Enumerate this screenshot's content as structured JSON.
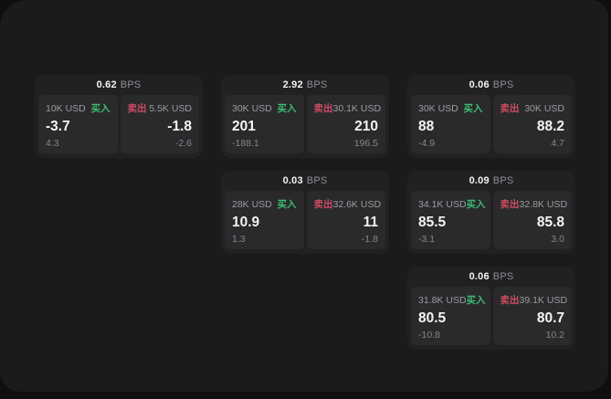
{
  "labels": {
    "bps_unit": "BPS",
    "buy": "买入",
    "sell": "卖出"
  },
  "colors": {
    "buy": "#3dbd71",
    "sell": "#cc4d64",
    "window_bg": "#1b1b1c",
    "card_bg": "#212123",
    "panel_bg": "#2a2a2c"
  },
  "cards": [
    {
      "row": 1,
      "col": 1,
      "bps": "0.62",
      "buy": {
        "size": "10K USD",
        "value": "-3.7",
        "sub": "4.3"
      },
      "sell": {
        "size": "5.5K USD",
        "value": "-1.8",
        "sub": "-2.6"
      }
    },
    {
      "row": 1,
      "col": 2,
      "bps": "2.92",
      "buy": {
        "size": "30K USD",
        "value": "201",
        "sub": "-188.1"
      },
      "sell": {
        "size": "30.1K USD",
        "value": "210",
        "sub": "196.5"
      }
    },
    {
      "row": 1,
      "col": 3,
      "bps": "0.06",
      "buy": {
        "size": "30K USD",
        "value": "88",
        "sub": "-4.9"
      },
      "sell": {
        "size": "30K USD",
        "value": "88.2",
        "sub": "4.7"
      }
    },
    {
      "row": 2,
      "col": 2,
      "bps": "0.03",
      "buy": {
        "size": "28K USD",
        "value": "10.9",
        "sub": "1.3"
      },
      "sell": {
        "size": "32.6K USD",
        "value": "11",
        "sub": "-1.8"
      }
    },
    {
      "row": 2,
      "col": 3,
      "bps": "0.09",
      "buy": {
        "size": "34.1K USD",
        "value": "85.5",
        "sub": "-3.1"
      },
      "sell": {
        "size": "32.8K USD",
        "value": "85.8",
        "sub": "3.0"
      }
    },
    {
      "row": 3,
      "col": 3,
      "bps": "0.06",
      "buy": {
        "size": "31.8K USD",
        "value": "80.5",
        "sub": "-10.8"
      },
      "sell": {
        "size": "39.1K USD",
        "value": "80.7",
        "sub": "10.2"
      }
    }
  ]
}
